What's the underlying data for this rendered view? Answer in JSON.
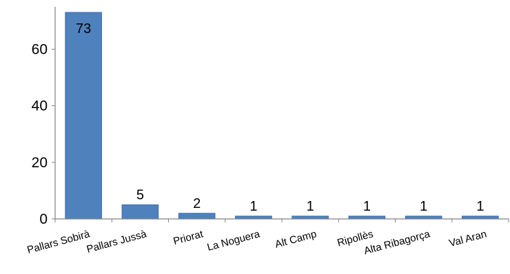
{
  "chart_data": {
    "type": "bar",
    "title": "",
    "xlabel": "",
    "ylabel": "",
    "categories": [
      "Pallars Sobirà",
      "Pallars Jussà",
      "Priorat",
      "La Noguera",
      "Alt Camp",
      "Ripollès",
      "Alta Ribagorça",
      "Val Aran"
    ],
    "values": [
      73,
      5,
      2,
      1,
      1,
      1,
      1,
      1
    ],
    "data_labels": [
      "73",
      "5",
      "2",
      "1",
      "1",
      "1",
      "1",
      "1"
    ],
    "ylim": [
      0,
      73
    ],
    "yticks": [
      0,
      20,
      40,
      60
    ],
    "ytick_labels": [
      "0",
      "20",
      "40",
      "60"
    ],
    "grid": false,
    "legend": "none",
    "bar_color": "#4F81BD",
    "bar_edge_color": "#3C6DB0",
    "axis_color": "#808080"
  }
}
